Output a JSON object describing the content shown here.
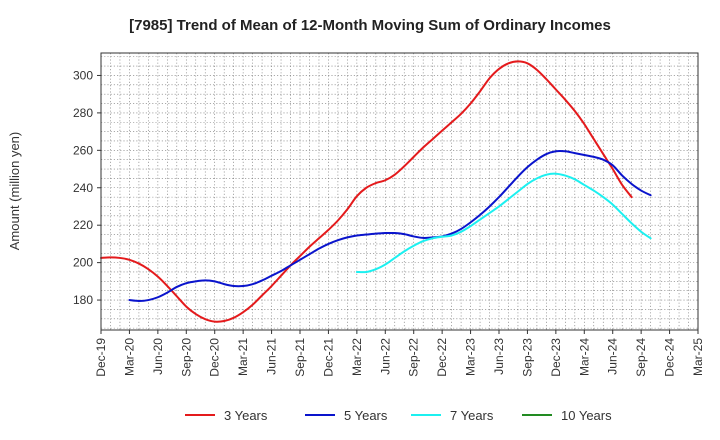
{
  "chart_data": {
    "type": "line",
    "title": "[7985]  Trend of Mean of 12-Month Moving Sum of Ordinary Incomes",
    "xlabel": "",
    "ylabel": "Amount (million yen)",
    "ylim": [
      164,
      312
    ],
    "yticks": [
      180,
      200,
      220,
      240,
      260,
      280,
      300
    ],
    "x_ticks": [
      "Dec-19",
      "Mar-20",
      "Jun-20",
      "Sep-20",
      "Dec-20",
      "Mar-21",
      "Jun-21",
      "Sep-21",
      "Dec-21",
      "Mar-22",
      "Jun-22",
      "Sep-22",
      "Dec-22",
      "Mar-23",
      "Jun-23",
      "Sep-23",
      "Dec-23",
      "Mar-24",
      "Jun-24",
      "Sep-24",
      "Dec-24",
      "Mar-25"
    ],
    "grid": true,
    "legend_position": "bottom",
    "series": [
      {
        "name": "3 Years",
        "color": "#e41a1c",
        "start_month": 0,
        "values": [
          202.5,
          202.8,
          202.5,
          201.5,
          199.5,
          196.5,
          192.5,
          187.5,
          182.0,
          176.5,
          172.5,
          169.8,
          168.5,
          168.8,
          170.5,
          173.5,
          177.5,
          182.5,
          187.5,
          193.0,
          198.5,
          203.5,
          208.5,
          213.0,
          217.5,
          222.5,
          228.5,
          235.5,
          240.0,
          242.5,
          244.0,
          247.0,
          251.5,
          256.5,
          261.5,
          266.0,
          270.5,
          275.0,
          279.5,
          285.0,
          291.5,
          298.5,
          303.5,
          306.5,
          307.5,
          306.5,
          303.0,
          298.0,
          292.5,
          287.0,
          281.0,
          274.0,
          266.0,
          258.0,
          250.0,
          241.5,
          235.0
        ]
      },
      {
        "name": "5 Years",
        "color": "#0a14cc",
        "start_month": 3,
        "values": [
          180.0,
          179.5,
          180.0,
          181.5,
          184.0,
          187.0,
          189.0,
          190.0,
          190.5,
          190.0,
          188.5,
          187.5,
          187.5,
          188.5,
          190.5,
          193.0,
          195.5,
          198.5,
          201.5,
          204.5,
          207.5,
          210.0,
          212.0,
          213.5,
          214.5,
          215.0,
          215.5,
          215.8,
          215.8,
          215.2,
          214.0,
          213.2,
          213.5,
          214.0,
          215.5,
          218.0,
          221.5,
          225.5,
          230.0,
          235.0,
          240.5,
          246.0,
          251.0,
          255.0,
          258.0,
          259.5,
          259.5,
          258.5,
          257.5,
          256.5,
          255.0,
          252.0,
          246.5,
          242.0,
          238.5,
          236.0
        ]
      },
      {
        "name": "7 Years",
        "color": "#1cf0f0",
        "start_month": 27,
        "values": [
          195.0,
          195.0,
          196.5,
          199.0,
          202.5,
          206.0,
          209.0,
          211.5,
          213.0,
          213.8,
          214.5,
          216.5,
          219.5,
          223.0,
          226.5,
          230.0,
          234.0,
          238.0,
          242.0,
          245.0,
          247.0,
          247.5,
          246.5,
          244.5,
          241.5,
          238.5,
          235.0,
          231.0,
          226.0,
          221.0,
          216.5,
          213.0
        ]
      },
      {
        "name": "10 Years",
        "color": "#228b22",
        "start_month": 0,
        "values": []
      }
    ]
  }
}
